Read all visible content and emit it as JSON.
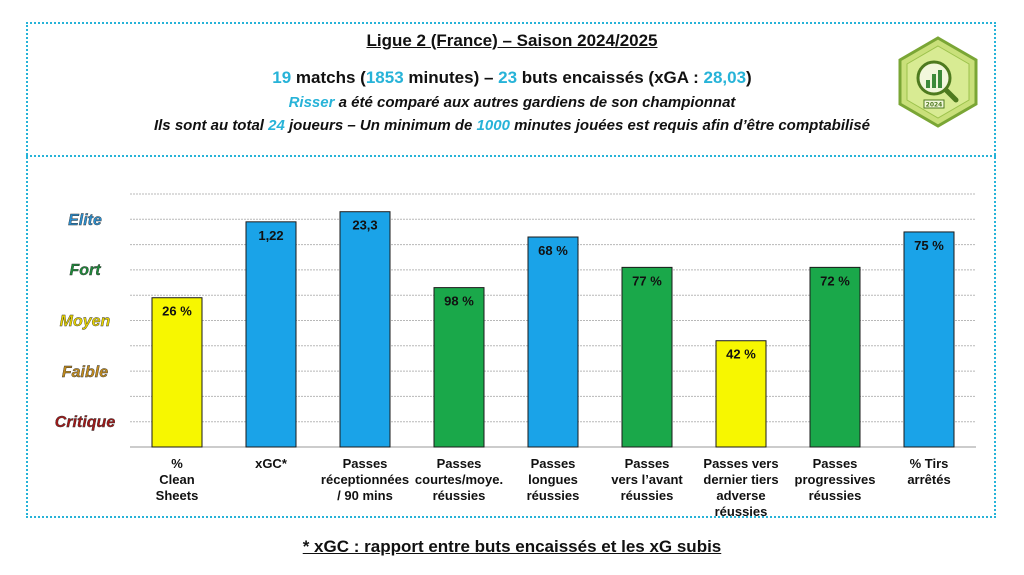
{
  "header": {
    "title": "Ligue 2 (France) – Saison 2024/2025",
    "stats": {
      "matches_value": "19",
      "matches_text": " matchs (",
      "minutes_value": "1853",
      "minutes_text": " minutes) – ",
      "goals_value": "23",
      "goals_text": " buts encaissés (xGA : ",
      "xga_value": "28,03",
      "close": ")"
    },
    "sub1": {
      "player": "Risser",
      "text": " a été comparé aux autres gardiens de son championnat"
    },
    "sub2": {
      "pre": "Ils sont au total ",
      "count": "24",
      "mid": " joueurs – Un minimum de ",
      "minutes": "1000",
      "post": " minutes jouées est requis afin d’être comptabilisé"
    },
    "logo_text": "2024"
  },
  "levels": [
    {
      "label": "Elite",
      "color": "#2b8fd0"
    },
    {
      "label": "Fort",
      "color": "#1e8a3a"
    },
    {
      "label": "Moyen",
      "color": "#e8d400"
    },
    {
      "label": "Faible",
      "color": "#c08a1c"
    },
    {
      "label": "Critique",
      "color": "#a01818"
    }
  ],
  "colors": {
    "accent": "#27b3d8",
    "elite": "#1aa3e8",
    "fort": "#1aa84a",
    "moyen": "#f7f700"
  },
  "chart_data": {
    "type": "bar",
    "ylim": [
      0,
      5
    ],
    "grid": true,
    "categories": [
      "%\nClean\nSheets",
      "xGC*",
      "Passes\nréceptionnées\n/ 90 mins",
      "Passes\ncourtes/moye.\nréussies",
      "Passes\nlongues\nréussies",
      "Passes\nvers l’avant\nréussies",
      "Passes vers\ndernier tiers\nadverse\nréussies",
      "Passes\nprogressives\nréussies",
      "% Tirs\narrêtés"
    ],
    "bars": [
      {
        "label": "26 %",
        "level": 2.95,
        "tier": "Moyen"
      },
      {
        "label": "1,22",
        "level": 4.45,
        "tier": "Elite"
      },
      {
        "label": "23,3",
        "level": 4.65,
        "tier": "Elite"
      },
      {
        "label": "98 %",
        "level": 3.15,
        "tier": "Fort"
      },
      {
        "label": "68 %",
        "level": 4.15,
        "tier": "Elite"
      },
      {
        "label": "77 %",
        "level": 3.55,
        "tier": "Fort"
      },
      {
        "label": "42 %",
        "level": 2.1,
        "tier": "Moyen"
      },
      {
        "label": "72 %",
        "level": 3.55,
        "tier": "Fort"
      },
      {
        "label": "75 %",
        "level": 4.25,
        "tier": "Elite"
      }
    ]
  },
  "footer": "* xGC : rapport entre buts encaissés et les xG subis"
}
